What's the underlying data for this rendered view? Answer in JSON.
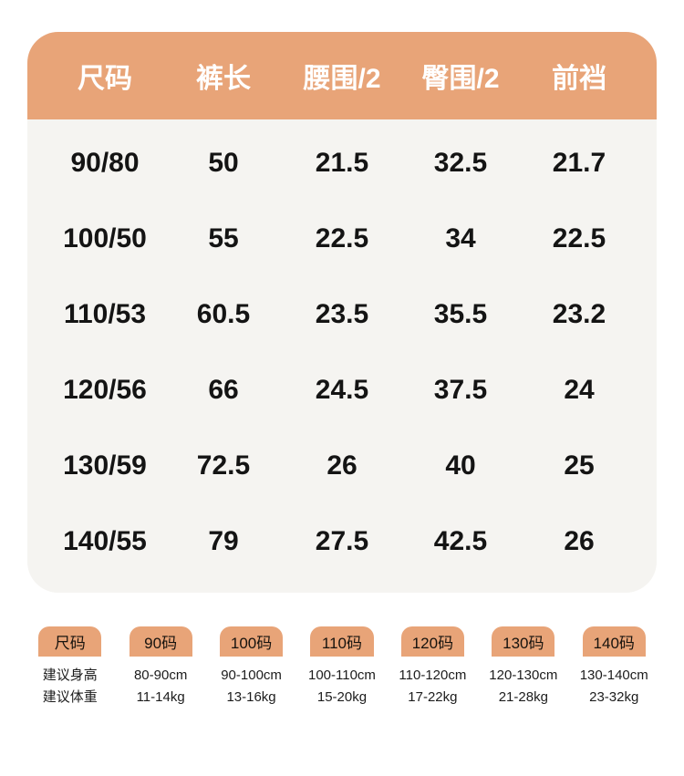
{
  "colors": {
    "accent_orange": "#E8A478",
    "table_body_bg": "#F5F4F1",
    "header_text": "#FFFFFF",
    "body_text": "#141414"
  },
  "chart_data": {
    "type": "table",
    "columns": [
      "尺码",
      "裤长",
      "腰围/2",
      "臀围/2",
      "前裆"
    ],
    "rows": [
      [
        "90/80",
        "50",
        "21.5",
        "32.5",
        "21.7"
      ],
      [
        "100/50",
        "55",
        "22.5",
        "34",
        "22.5"
      ],
      [
        "110/53",
        "60.5",
        "23.5",
        "35.5",
        "23.2"
      ],
      [
        "120/56",
        "66",
        "24.5",
        "37.5",
        "24"
      ],
      [
        "130/59",
        "72.5",
        "26",
        "40",
        "25"
      ],
      [
        "140/55",
        "79",
        "27.5",
        "42.5",
        "26"
      ]
    ]
  },
  "size_cards": [
    {
      "header": "尺码",
      "line1": "建议身高",
      "line2": "建议体重"
    },
    {
      "header": "90码",
      "line1": "80-90cm",
      "line2": "11-14kg"
    },
    {
      "header": "100码",
      "line1": "90-100cm",
      "line2": "13-16kg"
    },
    {
      "header": "110码",
      "line1": "100-110cm",
      "line2": "15-20kg"
    },
    {
      "header": "120码",
      "line1": "110-120cm",
      "line2": "17-22kg"
    },
    {
      "header": "130码",
      "line1": "120-130cm",
      "line2": "21-28kg"
    },
    {
      "header": "140码",
      "line1": "130-140cm",
      "line2": "23-32kg"
    }
  ]
}
